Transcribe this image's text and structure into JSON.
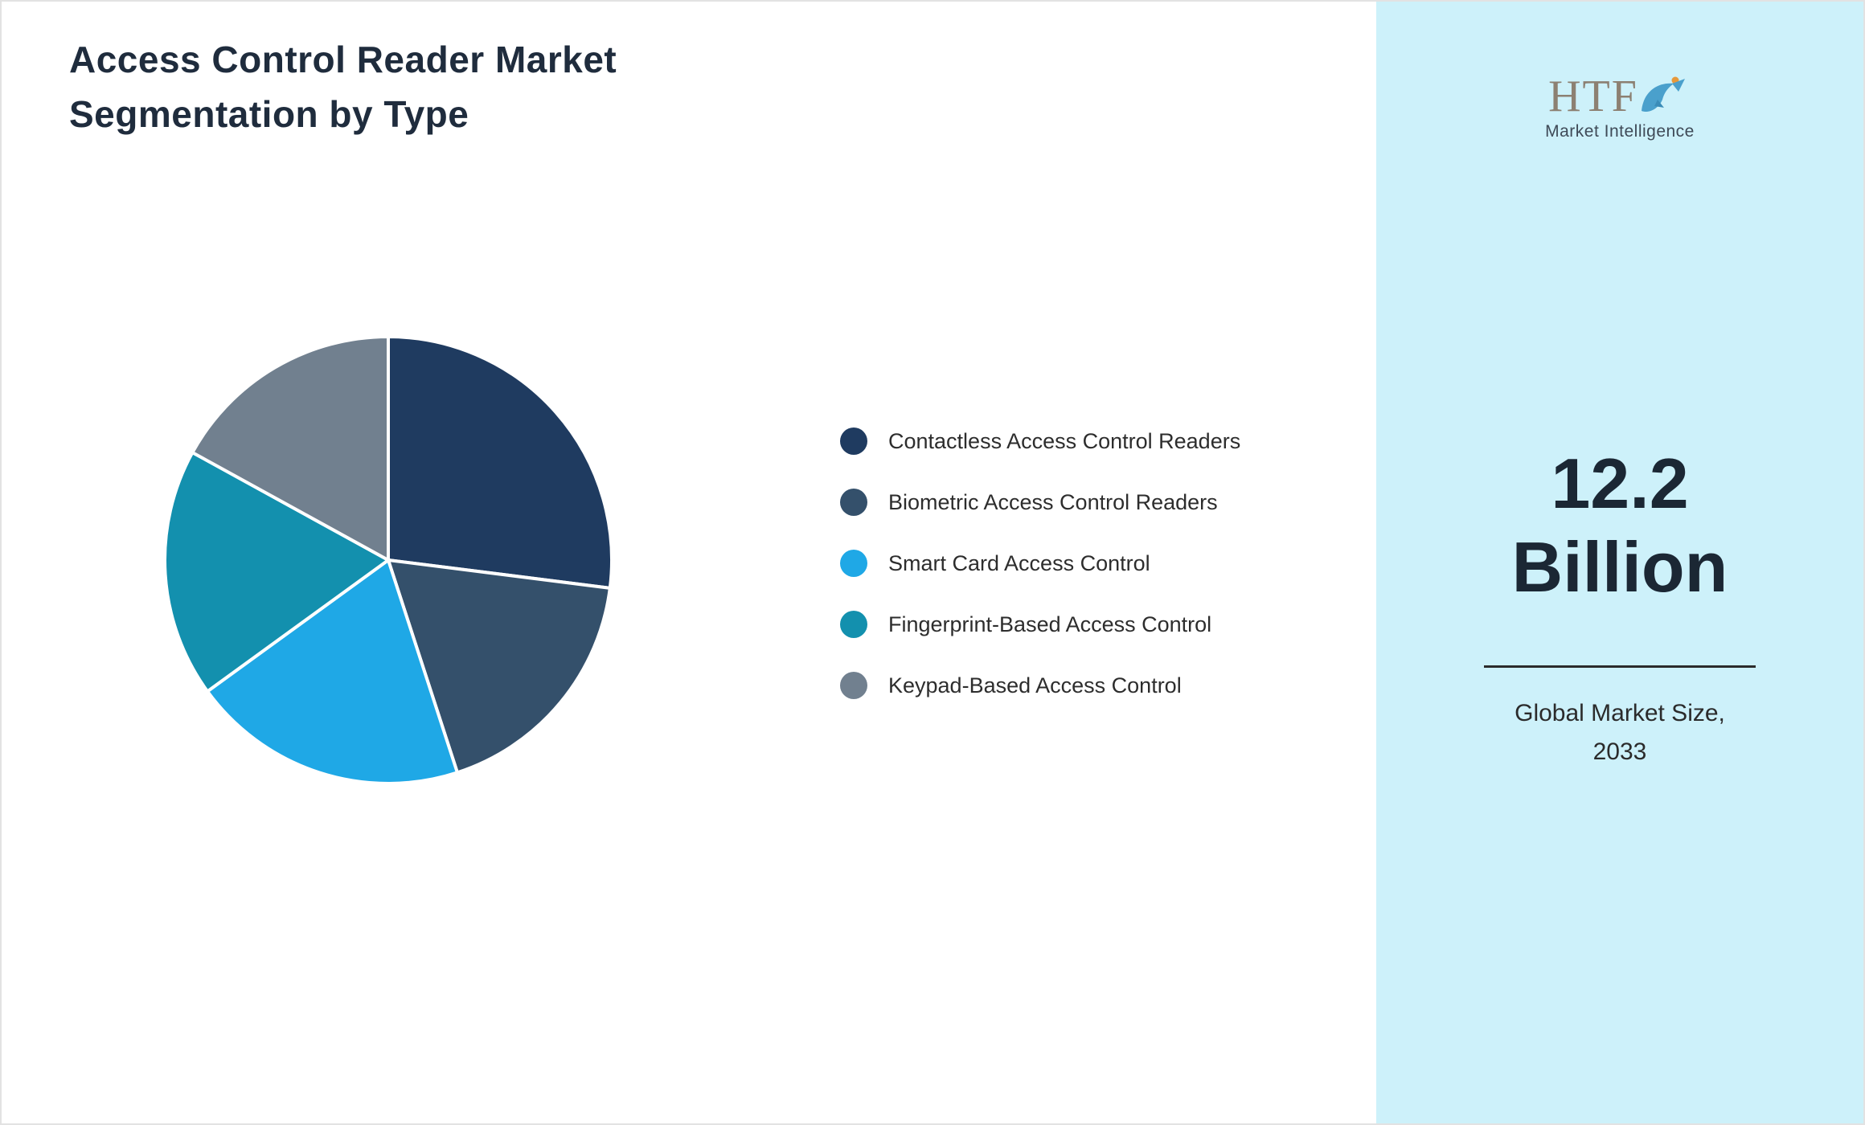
{
  "accent": {
    "panel_bg": "#cdf1fa",
    "title_color": "#1f2c3d",
    "divider_color": "#2b2b2b",
    "slice_separator_color": "#ffffff"
  },
  "title": {
    "line1": "Access Control Reader Market",
    "line2": "Segmentation by Type"
  },
  "logo": {
    "brand": "HTF",
    "subtitle": "Market Intelligence"
  },
  "panel": {
    "value_line1": "12.2",
    "value_line2": "Billion",
    "caption_line1": "Global Market Size,",
    "caption_line2": "2033"
  },
  "chart_data": {
    "type": "pie",
    "title": "Access Control Reader Market Segmentation by Type",
    "labels": [
      "Contactless Access Control Readers",
      "Biometric Access Control Readers",
      "Smart Card Access Control",
      "Fingerprint-Based Access Control",
      "Keypad-Based Access Control"
    ],
    "values": [
      27,
      18,
      20,
      18,
      17
    ],
    "colors": [
      "#1f3b60",
      "#34506b",
      "#1fa8e6",
      "#1390ae",
      "#71808f"
    ],
    "start_angle_deg": 0,
    "direction": "clockwise",
    "legend_position": "right"
  }
}
